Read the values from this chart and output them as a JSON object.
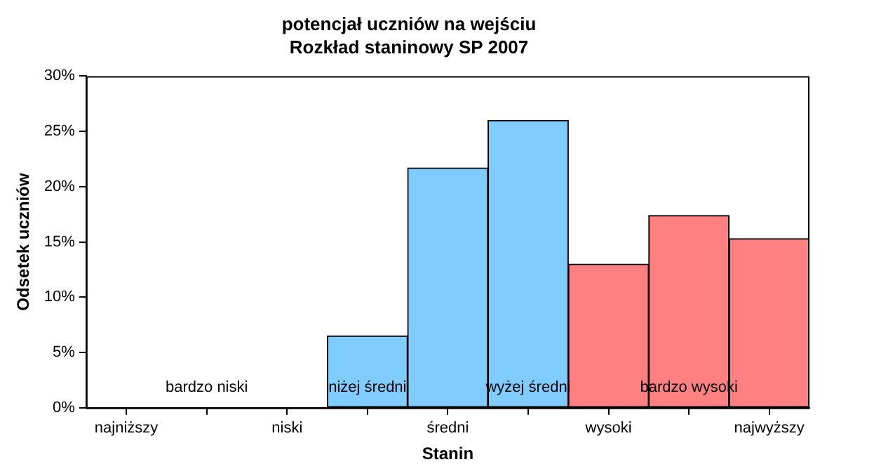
{
  "chart_data": {
    "type": "bar",
    "title": "potencjał uczniów na wejściu",
    "subtitle": "Rozkład staninowy SP 2007",
    "xlabel": "Stanin",
    "ylabel": "Odsetek uczniów",
    "categories": [
      "najniższy",
      null,
      "niski",
      null,
      "średni",
      null,
      "wysoki",
      null,
      "najwyższy"
    ],
    "values": [
      0,
      0,
      0,
      6.5,
      21.7,
      26.0,
      13.0,
      17.4,
      15.3
    ],
    "colors": [
      "#80ccff",
      "#80ccff",
      "#80ccff",
      "#80ccff",
      "#80ccff",
      "#80ccff",
      "#ff8080",
      "#ff8080",
      "#ff8080"
    ],
    "ylim": [
      0,
      30
    ],
    "yticks": [
      {
        "value": 0,
        "label": "0%"
      },
      {
        "value": 5,
        "label": "5%"
      },
      {
        "value": 10,
        "label": "10%"
      },
      {
        "value": 15,
        "label": "15%"
      },
      {
        "value": 20,
        "label": "20%"
      },
      {
        "value": 25,
        "label": "25%"
      },
      {
        "value": 30,
        "label": "30%"
      }
    ],
    "annotations": [
      "bardzo niski",
      "niżej średni",
      "wyżej średni",
      "bardzo wysoki"
    ],
    "grid": false,
    "legend": false
  }
}
